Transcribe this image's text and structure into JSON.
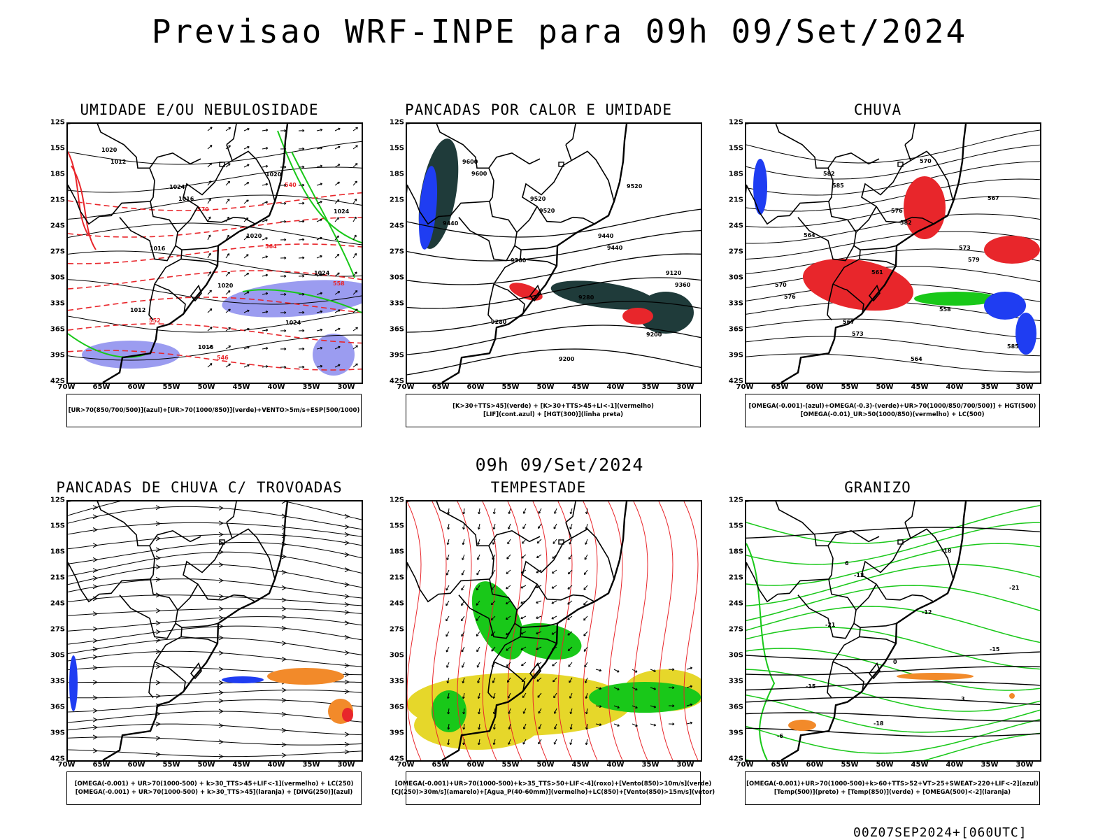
{
  "header": {
    "title": "Previsao WRF-INPE  para 09h 09/Set/2024"
  },
  "subheader": {
    "title": "09h 09/Set/2024"
  },
  "footer": {
    "stamp": "00Z07SEP2024+[060UTC]"
  },
  "axes": {
    "lat_labels": [
      "12S",
      "15S",
      "18S",
      "21S",
      "24S",
      "27S",
      "30S",
      "33S",
      "36S",
      "39S",
      "42S"
    ],
    "lon_labels": [
      "70W",
      "65W",
      "60W",
      "55W",
      "50W",
      "45W",
      "40W",
      "35W",
      "30W"
    ]
  },
  "colors": {
    "red": "#e8262b",
    "green": "#19c819",
    "blue": "#1f3df2",
    "lavender": "#9b9cf0",
    "darkgreen": "#1f3b3a",
    "yellow": "#e6d72a",
    "orange": "#f28a2a",
    "black": "#000000"
  },
  "panels": [
    {
      "id": "umidade",
      "title": "UMIDADE E/OU NEBULOSIDADE",
      "legend": [
        "[UR>70(850/700/500)](azul)+[UR>70(1000/850)](verde)+VENTO>5m/s+ESP(500/1000)"
      ],
      "contour_labels": [
        "1012",
        "1016",
        "1020",
        "1024",
        "1012",
        "1016",
        "1020",
        "1024",
        "1016",
        "1020",
        "1024",
        "1020",
        "1024",
        "570",
        "564",
        "558",
        "552",
        "546",
        "540"
      ]
    },
    {
      "id": "pancadas-calor",
      "title": "PANCADAS POR CALOR E UMIDADE",
      "legend": [
        "[K>30+TTS>45](verde)  +  [K>30+TTS>45+LI<-1](vermelho)",
        "[LIF](cont.azul)  +  [HGT(300)](linha preta)"
      ],
      "contour_labels": [
        "9600",
        "9520",
        "9440",
        "9360",
        "9280",
        "9200",
        "9520",
        "9440",
        "9360",
        "9280",
        "9200",
        "9600",
        "9520",
        "9440",
        "9120"
      ]
    },
    {
      "id": "chuva",
      "title": "CHUVA",
      "legend": [
        "[OMEGA(-0.001)-(azul)+OMEGA(-0.3)-(verde)+UR>70(1000/850/700/500)]  +  HGT(500)",
        "[OMEGA(-0.01)_UR>50(1000/850)(vermelho)  +  LC(500)"
      ],
      "contour_labels": [
        "585",
        "582",
        "579",
        "576",
        "573",
        "570",
        "567",
        "564",
        "561",
        "558",
        "585",
        "582",
        "576",
        "573",
        "570",
        "567",
        "564"
      ]
    },
    {
      "id": "trovoadas",
      "title": "PANCADAS DE CHUVA C/ TROVOADAS",
      "legend": [
        "[OMEGA(-0.001)  +  UR>70(1000-500)  +  k>30_TTS>45+LIF<-1](vermelho)  +  LC(250)",
        "[OMEGA(-0.001)  +  UR>70(1000-500)  +  k>30_TTS>45](laranja)  +  [DIVG(250)](azul)"
      ],
      "contour_labels": []
    },
    {
      "id": "tempestade",
      "title": "TEMPESTADE",
      "legend": [
        "[OMEGA(-0.001)+UR>70(1000-500)+k>35_TTS>50+LIF<-4](roxo)+[Vento(850)>10m/s](verde)",
        "[CJ(250)>30m/s](amarelo)+[Agua_P(40-60mm)](vermelho)+LC(850)+[Vento(850)>15m/s](vetor)"
      ],
      "contour_labels": []
    },
    {
      "id": "granizo",
      "title": "GRANIZO",
      "legend": [
        "[OMEGA(-0.001)+UR>70(1000-500)+k>60+TTS>52+VT>25+SWEAT>220+LIF<-2](azul)",
        "[Temp(500)](preto)  +  [Temp(850)](verde)  +  [OMEGA(500)<-2](laranja)"
      ],
      "contour_labels": [
        "-12",
        "-12",
        "-15",
        "-15",
        "-18",
        "-18",
        "-21",
        "-21",
        "0",
        "3",
        "-6",
        "6"
      ]
    }
  ]
}
